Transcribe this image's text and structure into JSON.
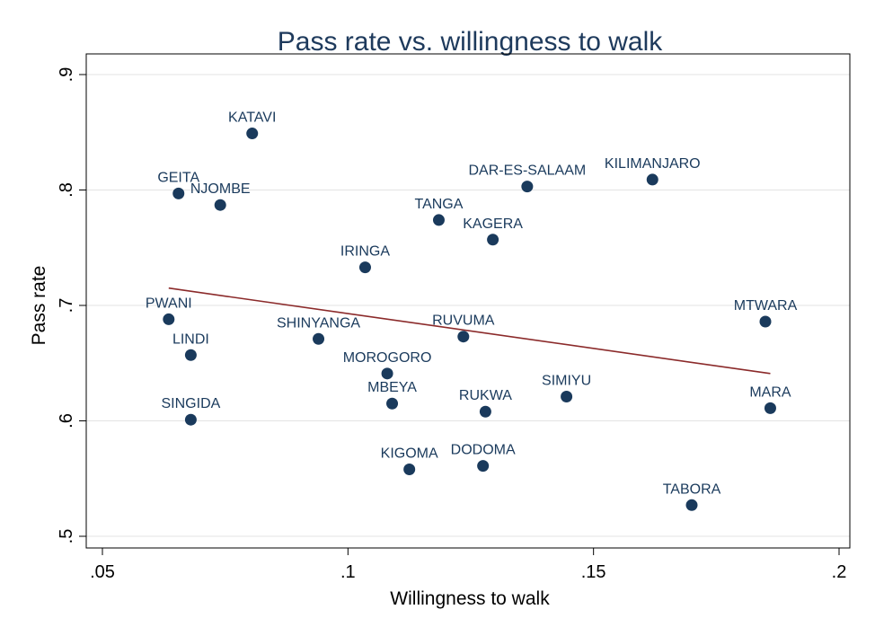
{
  "chart_data": {
    "type": "scatter",
    "title": "Pass rate vs. willingness to walk",
    "xlabel": "Willingness to walk",
    "ylabel": "Pass rate",
    "xlim": [
      0.05,
      0.2
    ],
    "ylim": [
      0.5,
      0.9
    ],
    "x_ticks": [
      0.05,
      0.1,
      0.15,
      0.2
    ],
    "x_tick_labels": [
      ".05",
      ".1",
      ".15",
      ".2"
    ],
    "y_ticks": [
      0.5,
      0.6,
      0.7,
      0.8,
      0.9
    ],
    "y_tick_labels": [
      ".5",
      ".6",
      ".7",
      ".8",
      ".9"
    ],
    "grid": true,
    "points": [
      {
        "label": "KATAVI",
        "x": 0.0805,
        "y": 0.849
      },
      {
        "label": "GEITA",
        "x": 0.0655,
        "y": 0.797
      },
      {
        "label": "NJOMBE",
        "x": 0.074,
        "y": 0.787
      },
      {
        "label": "DAR-ES-SALAAM",
        "x": 0.1365,
        "y": 0.803
      },
      {
        "label": "KILIMANJARO",
        "x": 0.162,
        "y": 0.809
      },
      {
        "label": "TANGA",
        "x": 0.1185,
        "y": 0.774
      },
      {
        "label": "KAGERA",
        "x": 0.1295,
        "y": 0.757
      },
      {
        "label": "IRINGA",
        "x": 0.1035,
        "y": 0.733
      },
      {
        "label": "PWANI",
        "x": 0.0635,
        "y": 0.688
      },
      {
        "label": "MTWARA",
        "x": 0.185,
        "y": 0.686
      },
      {
        "label": "SHINYANGA",
        "x": 0.094,
        "y": 0.671
      },
      {
        "label": "RUVUMA",
        "x": 0.1235,
        "y": 0.673
      },
      {
        "label": "LINDI",
        "x": 0.068,
        "y": 0.657
      },
      {
        "label": "MOROGORO",
        "x": 0.108,
        "y": 0.641
      },
      {
        "label": "MBEYA",
        "x": 0.109,
        "y": 0.615
      },
      {
        "label": "SIMIYU",
        "x": 0.1445,
        "y": 0.621
      },
      {
        "label": "RUKWA",
        "x": 0.128,
        "y": 0.608
      },
      {
        "label": "MARA",
        "x": 0.186,
        "y": 0.611
      },
      {
        "label": "SINGIDA",
        "x": 0.068,
        "y": 0.601
      },
      {
        "label": "KIGOMA",
        "x": 0.1125,
        "y": 0.558
      },
      {
        "label": "DODOMA",
        "x": 0.1275,
        "y": 0.561
      },
      {
        "label": "TABORA",
        "x": 0.17,
        "y": 0.527
      }
    ],
    "fit_line": {
      "x": [
        0.0635,
        0.186
      ],
      "y": [
        0.715,
        0.641
      ]
    },
    "colors": {
      "marker": "#1a3a5c",
      "fit_line": "#8b2a2a",
      "title": "#1e3a5c"
    }
  }
}
